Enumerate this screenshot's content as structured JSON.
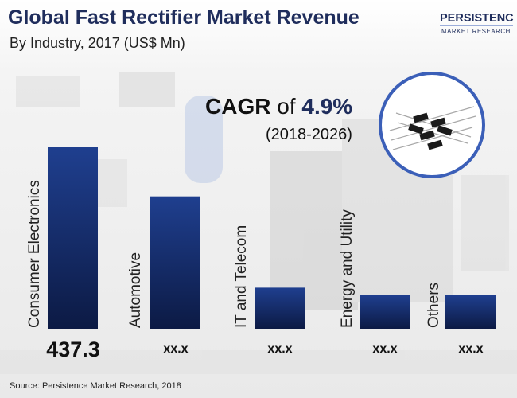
{
  "header": {
    "title": "Global Fast Rectifier Market Revenue",
    "subtitle": "By Industry, 2017 (US$ Mn)"
  },
  "logo": {
    "line1": "PERSISTENCE",
    "line2": "MARKET RESEARCH",
    "color": "#1f2d5c",
    "accent": "#3b5fb8"
  },
  "cagr": {
    "label": "CAGR",
    "connector": "of",
    "value": "4.9%",
    "period": "(2018-2026)"
  },
  "chart_data": {
    "type": "bar",
    "categories": [
      "Consumer Electronics",
      "Automotive",
      "IT and Telecom",
      "Energy and Utility",
      "Others"
    ],
    "values": [
      437.3,
      319,
      99,
      81,
      81
    ],
    "value_labels": [
      "437.3",
      "xx.x",
      "xx.x",
      "xx.x",
      "xx.x"
    ],
    "title": "Global Fast Rectifier Market Revenue",
    "subtitle": "By Industry, 2017 (US$ Mn)",
    "xlabel": "",
    "ylabel": "",
    "ylim": [
      0,
      437.3
    ],
    "grid": false,
    "bar_color": "#1f3f8f"
  },
  "footer": {
    "source": "Source: Persistence Market Research, 2018"
  }
}
